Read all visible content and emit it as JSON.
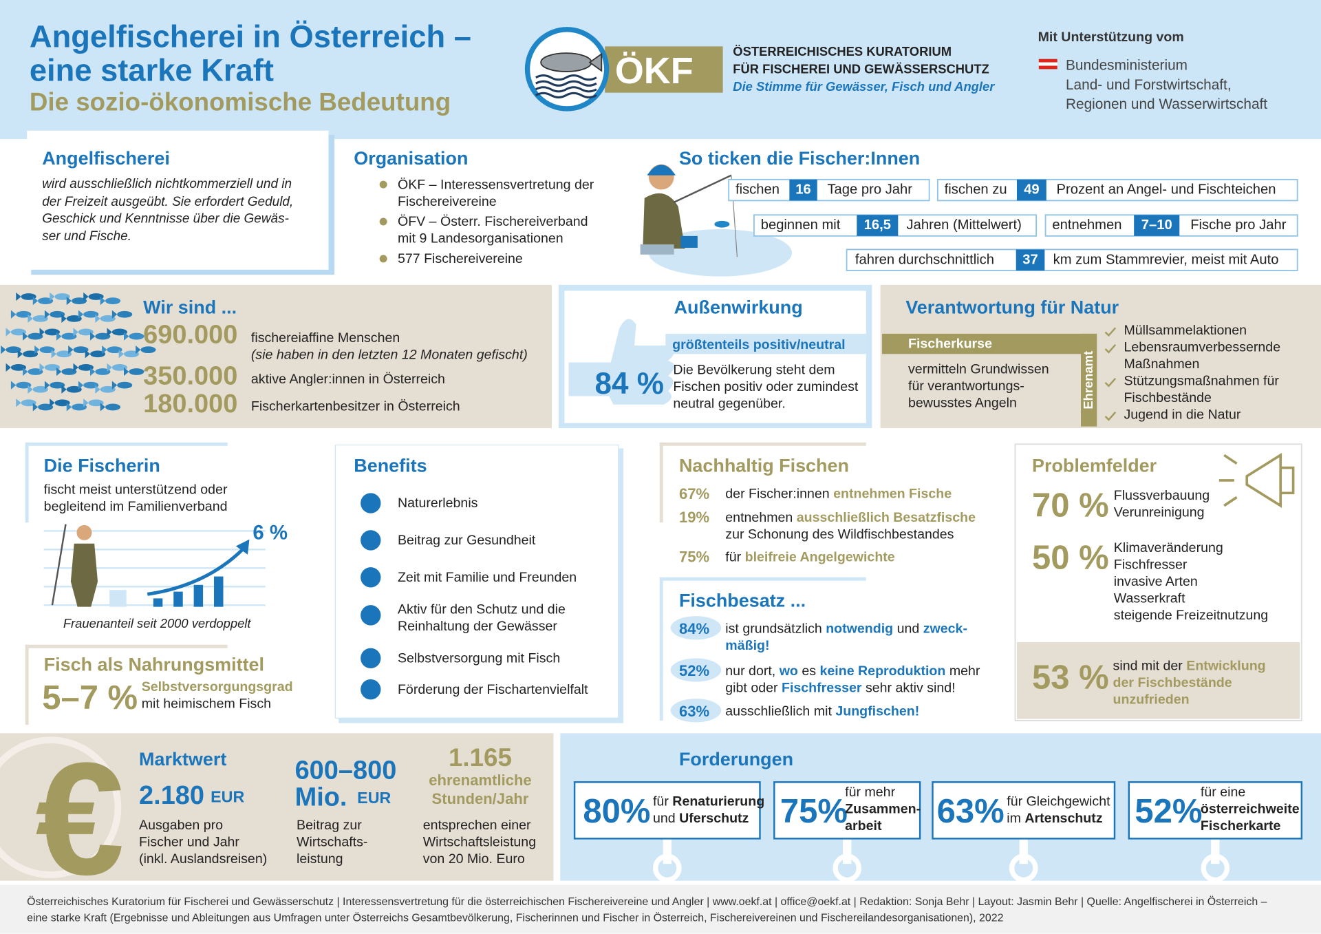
{
  "header": {
    "title": [
      "Angelfischerei in Österreich –",
      "eine starke Kraft"
    ],
    "subtitle": "Die sozio-ökonomische Bedeutung",
    "logo_text": "ÖKF",
    "organization": [
      "ÖSTERREICHISCHES KURATORIUM",
      "FÜR FISCHEREI UND GEWÄSSERSCHUTZ"
    ],
    "tagline": "Die Stimme für Gewässer, Fisch und Angler",
    "support_label": "Mit Unterstützung vom",
    "ministry": [
      "Bundesministerium",
      "Land- und Forstwirtschaft,",
      "Regionen und Wasserwirtschaft"
    ]
  },
  "angelfischerei": {
    "heading": "Angelfischerei",
    "text": [
      "wird ausschließlich nichtkommerziell und in",
      "der Freizeit ausgeübt. Sie erfordert Geduld,",
      "Geschick und Kenntnisse über die Gewäs-",
      "ser und Fische."
    ]
  },
  "organisation": {
    "heading": "Organisation",
    "items": [
      [
        "ÖKF – Interessensvertretung der",
        "Fischereivereine"
      ],
      [
        "ÖFV – Österr. Fischereiverband",
        "mit 9 Landesorganisationen"
      ],
      [
        "577 Fischereivereine"
      ]
    ]
  },
  "fischer_profile": {
    "heading": "So ticken die Fischer:Innen",
    "facts": [
      {
        "before": "fischen",
        "number": "16",
        "after": "Tage pro Jahr"
      },
      {
        "before": "fischen zu",
        "number": "49",
        "after": "Prozent an Angel- und Fischteichen"
      },
      {
        "before": "beginnen mit",
        "number": "16,5",
        "after": "Jahren (Mittelwert)"
      },
      {
        "before": "entnehmen",
        "number": "7–10",
        "after": "Fische pro Jahr"
      },
      {
        "before": "fahren durchschnittlich",
        "number": "37",
        "after": "km zum Stammrevier, meist mit Auto"
      }
    ]
  },
  "wir_sind": {
    "heading": "Wir sind ...",
    "rows": [
      {
        "value": "690.000",
        "label": "fischereiaffine Menschen",
        "note": "(sie haben in den letzten 12 Monaten gefischt)"
      },
      {
        "value": "350.000",
        "label": "aktive Angler:innen in Österreich"
      },
      {
        "value": "180.000",
        "label": "Fischerkartenbesitzer in Österreich"
      }
    ]
  },
  "aussenwirkung": {
    "heading": "Außenwirkung",
    "subheading": "größtenteils positiv/neutral",
    "value": "84 %",
    "text": [
      "Die Bevölkerung steht dem",
      "Fischen positiv oder zumindest",
      "neutral gegenüber."
    ]
  },
  "verantwortung": {
    "heading": "Verantwortung für Natur",
    "course_label": "Fischerkurse",
    "course_text": [
      "vermitteln Grundwissen",
      "für verantwortungs-",
      "bewusstes Angeln"
    ],
    "volunteer_label": "Ehrenamt",
    "volunteer_items": [
      [
        "Müllsammelaktionen"
      ],
      [
        "Lebensraumverbessernde",
        "Maßnahmen"
      ],
      [
        "Stützungsmaßnahmen für",
        "Fischbestände"
      ],
      [
        "Jugend in die Natur"
      ]
    ]
  },
  "fischerin": {
    "heading": "Die Fischerin",
    "text": [
      "fischt meist unterstützend oder",
      "begleitend im Familienverband"
    ],
    "value": "6 %",
    "caption": "Frauenanteil seit 2000 verdoppelt"
  },
  "nahrungsmittel": {
    "heading": "Fisch als Nahrungsmittel",
    "value": "5–7 %",
    "label": "Selbstversorgungsgrad",
    "text": "mit heimischem Fisch"
  },
  "benefits": {
    "heading": "Benefits",
    "items": [
      [
        "Naturerlebnis"
      ],
      [
        "Beitrag zur Gesundheit"
      ],
      [
        "Zeit mit Familie und Freunden"
      ],
      [
        "Aktiv für den Schutz und die",
        "Reinhaltung der Gewässer"
      ],
      [
        "Selbstversorgung mit Fisch"
      ],
      [
        "Förderung der Fischartenvielfalt"
      ]
    ]
  },
  "nachhaltig": {
    "heading": "Nachhaltig Fischen",
    "items": [
      {
        "value": "67%",
        "lines": [
          [
            {
              "plain": "der Fischer:innen "
            },
            {
              "em": "entnehmen Fische"
            }
          ]
        ]
      },
      {
        "value": "19%",
        "lines": [
          [
            {
              "plain": "entnehmen "
            },
            {
              "em": "ausschließlich Besatzfische"
            }
          ],
          [
            {
              "plain": "zur Schonung des Wildfischbestandes"
            }
          ]
        ]
      },
      {
        "value": "75%",
        "lines": [
          [
            {
              "plain": "für "
            },
            {
              "em": "bleifreie Angelgewichte"
            }
          ]
        ]
      }
    ]
  },
  "fischbesatz": {
    "heading": "Fischbesatz ...",
    "items": [
      {
        "value": "84%",
        "lines": [
          [
            {
              "plain": "ist grundsätzlich "
            },
            {
              "em": "notwendig"
            },
            {
              "plain": " und "
            },
            {
              "em": "zweck-"
            }
          ],
          [
            {
              "em": "mäßig!"
            }
          ]
        ]
      },
      {
        "value": "52%",
        "lines": [
          [
            {
              "plain": "nur dort, "
            },
            {
              "em": "wo"
            },
            {
              "plain": " es "
            },
            {
              "em": "keine Reproduktion"
            },
            {
              "plain": " mehr"
            }
          ],
          [
            {
              "plain": "gibt oder "
            },
            {
              "em": "Fischfresser"
            },
            {
              "plain": " sehr aktiv sind!"
            }
          ]
        ]
      },
      {
        "value": "63%",
        "lines": [
          [
            {
              "plain": "ausschließlich mit "
            },
            {
              "em": "Jungfischen!"
            }
          ]
        ]
      }
    ]
  },
  "problemfelder": {
    "heading": "Problemfelder",
    "groups": [
      {
        "value": "70 %",
        "items": [
          "Flussverbauung",
          "Verunreinigung"
        ]
      },
      {
        "value": "50 %",
        "items": [
          "Klimaveränderung",
          "Fischfresser",
          "invasive Arten",
          "Wasserkraft",
          "steigende Freizeitnutzung"
        ]
      }
    ],
    "dissatisfied": {
      "value": "53 %",
      "lines": [
        [
          {
            "plain": "sind mit der "
          },
          {
            "em": "Entwicklung"
          }
        ],
        [
          {
            "em": "der Fischbestände"
          }
        ],
        [
          {
            "em": "unzufrieden"
          }
        ]
      ]
    }
  },
  "wirtschaft": {
    "symbol": "€",
    "marktwert": {
      "heading": "Marktwert",
      "value": "2.180",
      "unit": "EUR",
      "text": [
        "Ausgaben pro",
        "Fischer und Jahr",
        "(inkl. Auslandsreisen)"
      ]
    },
    "wertschoepfung": {
      "value": [
        "600–800",
        "Mio."
      ],
      "unit": "EUR",
      "text": [
        "Beitrag zur",
        "Wirtschafts-",
        "leistung"
      ]
    },
    "ehrenamt": {
      "value": "1.165",
      "label": [
        "ehrenamtliche",
        "Stunden/Jahr"
      ],
      "text": [
        "entsprechen einer",
        "Wirtschaftsleistung",
        "von 20 Mio. Euro"
      ]
    }
  },
  "forderungen": {
    "heading": "Forderungen",
    "items": [
      {
        "value": "80%",
        "lines": [
          [
            {
              "plain": "für "
            },
            {
              "em": "Renaturierung"
            }
          ],
          [
            {
              "plain": "und "
            },
            {
              "em": "Uferschutz"
            }
          ]
        ]
      },
      {
        "value": "75%",
        "lines": [
          [
            {
              "plain": "für mehr"
            }
          ],
          [
            {
              "em": "Zusammen-"
            }
          ],
          [
            {
              "em": "arbeit"
            }
          ]
        ]
      },
      {
        "value": "63%",
        "lines": [
          [
            {
              "plain": "für Gleichgewicht"
            }
          ],
          [
            {
              "plain": "im "
            },
            {
              "em": "Artenschutz"
            }
          ]
        ]
      },
      {
        "value": "52%",
        "lines": [
          [
            {
              "plain": "für eine"
            }
          ],
          [
            {
              "em": "österreichweite"
            }
          ],
          [
            {
              "em": "Fischerkarte"
            }
          ]
        ]
      }
    ]
  },
  "footer": [
    "Österreichisches Kuratorium für Fischerei und Gewässerschutz | Interessensvertretung für die österreichischen Fischereivereine und Angler | www.oekf.at | office@oekf.at | Redaktion: Sonja Behr | Layout: Jasmin Behr | Quelle: Angelfischerei in Österreich –",
    "eine starke Kraft (Ergebnisse und Ableitungen aus Umfragen unter Österreichs Gesamtbevölkerung, Fischerinnen und Fischer in Österreich, Fischereivereinen und Fischereilandesorganisationen), 2022"
  ]
}
